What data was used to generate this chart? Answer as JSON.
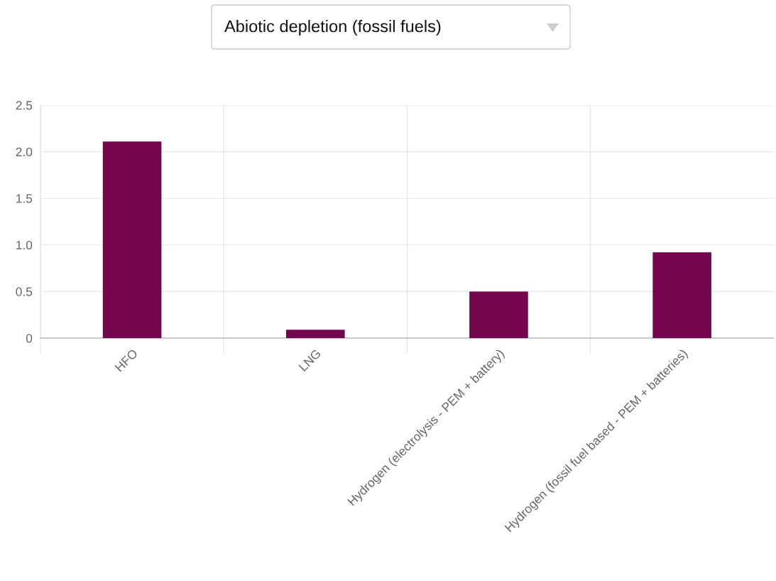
{
  "chart_data": {
    "type": "bar",
    "title": "Abiotic depletion (fossil fuels)",
    "categories": [
      "HFO",
      "LNG",
      "Hydrogen (electrolysis - PEM + battery)",
      "Hydrogen (fossil fuel based - PEM + batteries)"
    ],
    "values": [
      2.11,
      0.09,
      0.5,
      0.92
    ],
    "color": "#75064d",
    "ylim": [
      0,
      2.5
    ],
    "yticks": [
      0,
      {
        "value": 0.5,
        "label": "0.5"
      },
      {
        "value": 1,
        "label": "1.0"
      },
      {
        "value": 1.5,
        "label": "1.5"
      },
      {
        "value": 2,
        "label": "2.0"
      },
      {
        "value": 2.5,
        "label": "2.5"
      }
    ],
    "grid": true
  }
}
